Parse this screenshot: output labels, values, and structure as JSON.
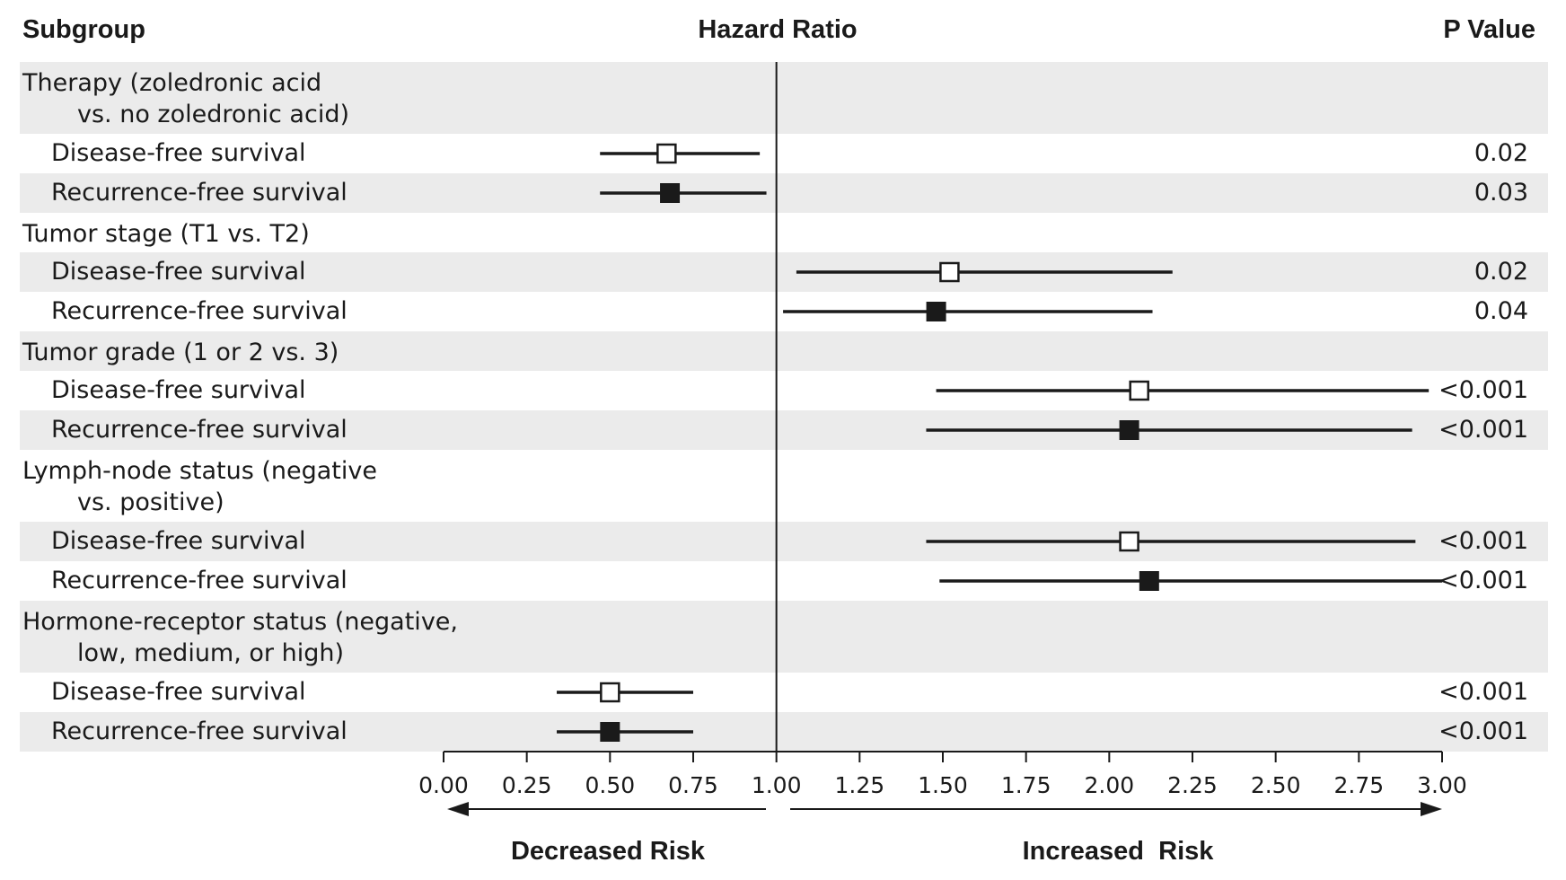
{
  "headers": {
    "subgroup": "Subgroup",
    "hazard_ratio": "Hazard Ratio",
    "p_value": "P Value"
  },
  "direction_labels": {
    "left": "Decreased Risk",
    "right": "Increased  Risk"
  },
  "colors": {
    "stripe": "#ebebeb",
    "ink": "#1a1a1a",
    "open_marker_fill": "#ffffff"
  },
  "chart_data": {
    "type": "forest",
    "title": "",
    "xlabel": "Hazard Ratio",
    "xlim": [
      0.0,
      3.0
    ],
    "reference_line": 1.0,
    "x_ticks": [
      "0.00",
      "0.25",
      "0.50",
      "0.75",
      "1.00",
      "1.25",
      "1.50",
      "1.75",
      "2.00",
      "2.25",
      "2.50",
      "2.75",
      "3.00"
    ],
    "marker_styles": {
      "Disease-free survival": "open-square",
      "Recurrence-free survival": "filled-square"
    },
    "rows": [
      {
        "kind": "group",
        "lines": [
          "Therapy (zoledronic acid",
          "vs. no zoledronic acid)"
        ],
        "stripe": true
      },
      {
        "kind": "result",
        "label": "Disease-free survival",
        "marker": "open",
        "hr": 0.67,
        "lo": 0.47,
        "hi": 0.95,
        "p": "0.02",
        "stripe": false
      },
      {
        "kind": "result",
        "label": "Recurrence-free survival",
        "marker": "filled",
        "hr": 0.68,
        "lo": 0.47,
        "hi": 0.97,
        "p": "0.03",
        "stripe": true
      },
      {
        "kind": "group",
        "lines": [
          "Tumor stage (T1 vs. T2)"
        ],
        "stripe": false
      },
      {
        "kind": "result",
        "label": "Disease-free survival",
        "marker": "open",
        "hr": 1.52,
        "lo": 1.06,
        "hi": 2.19,
        "p": "0.02",
        "stripe": true
      },
      {
        "kind": "result",
        "label": "Recurrence-free survival",
        "marker": "filled",
        "hr": 1.48,
        "lo": 1.02,
        "hi": 2.13,
        "p": "0.04",
        "stripe": false
      },
      {
        "kind": "group",
        "lines": [
          "Tumor grade (1 or 2 vs. 3)"
        ],
        "stripe": true
      },
      {
        "kind": "result",
        "label": "Disease-free survival",
        "marker": "open",
        "hr": 2.09,
        "lo": 1.48,
        "hi": 2.96,
        "p": "<0.001",
        "stripe": false
      },
      {
        "kind": "result",
        "label": "Recurrence-free survival",
        "marker": "filled",
        "hr": 2.06,
        "lo": 1.45,
        "hi": 2.91,
        "p": "<0.001",
        "stripe": true
      },
      {
        "kind": "group",
        "lines": [
          "Lymph-node status (negative",
          "vs. positive)"
        ],
        "stripe": false
      },
      {
        "kind": "result",
        "label": "Disease-free survival",
        "marker": "open",
        "hr": 2.06,
        "lo": 1.45,
        "hi": 2.92,
        "p": "<0.001",
        "stripe": true
      },
      {
        "kind": "result",
        "label": "Recurrence-free survival",
        "marker": "filled",
        "hr": 2.12,
        "lo": 1.49,
        "hi": 3.0,
        "p": "<0.001",
        "stripe": false
      },
      {
        "kind": "group",
        "lines": [
          "Hormone-receptor status (negative,",
          "low, medium, or high)"
        ],
        "stripe": true
      },
      {
        "kind": "result",
        "label": "Disease-free survival",
        "marker": "open",
        "hr": 0.5,
        "lo": 0.34,
        "hi": 0.75,
        "p": "<0.001",
        "stripe": false
      },
      {
        "kind": "result",
        "label": "Recurrence-free survival",
        "marker": "filled",
        "hr": 0.5,
        "lo": 0.34,
        "hi": 0.75,
        "p": "<0.001",
        "stripe": true
      }
    ]
  }
}
